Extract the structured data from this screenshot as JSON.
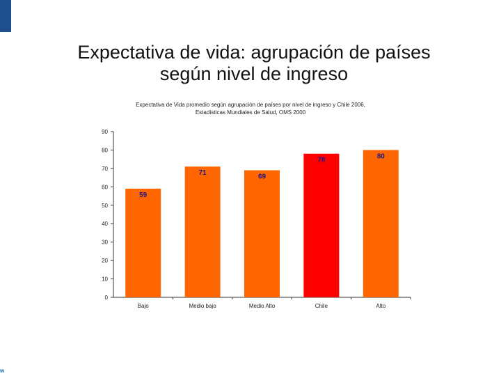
{
  "slide": {
    "title_line1": "Expectativa de vida: agrupación de países",
    "title_line2": "según nivel de ingreso",
    "logo_text": "w"
  },
  "chart_data": {
    "type": "bar",
    "title": "Expectativa de Vida promedio según agrupación de países por nivel de ingreso y Chile 2006,",
    "subtitle": "Estadísticas Mundiales de Salud, OMS 2000",
    "categories": [
      "Bajo",
      "Medio bajo",
      "Medio Alto",
      "Chile",
      "Alto"
    ],
    "values": [
      59,
      71,
      69,
      78,
      80
    ],
    "value_labels": [
      "59",
      "71",
      "69",
      "78",
      "80"
    ],
    "ylim": [
      0,
      90
    ],
    "yticks": [
      0,
      10,
      20,
      30,
      40,
      50,
      60,
      70,
      80,
      90
    ],
    "xlabel": "",
    "ylabel": "",
    "bar_colors": [
      "#ff6600",
      "#ff6600",
      "#ff6600",
      "#ff0000",
      "#ff6600"
    ],
    "label_color": "#1a1a8c"
  }
}
